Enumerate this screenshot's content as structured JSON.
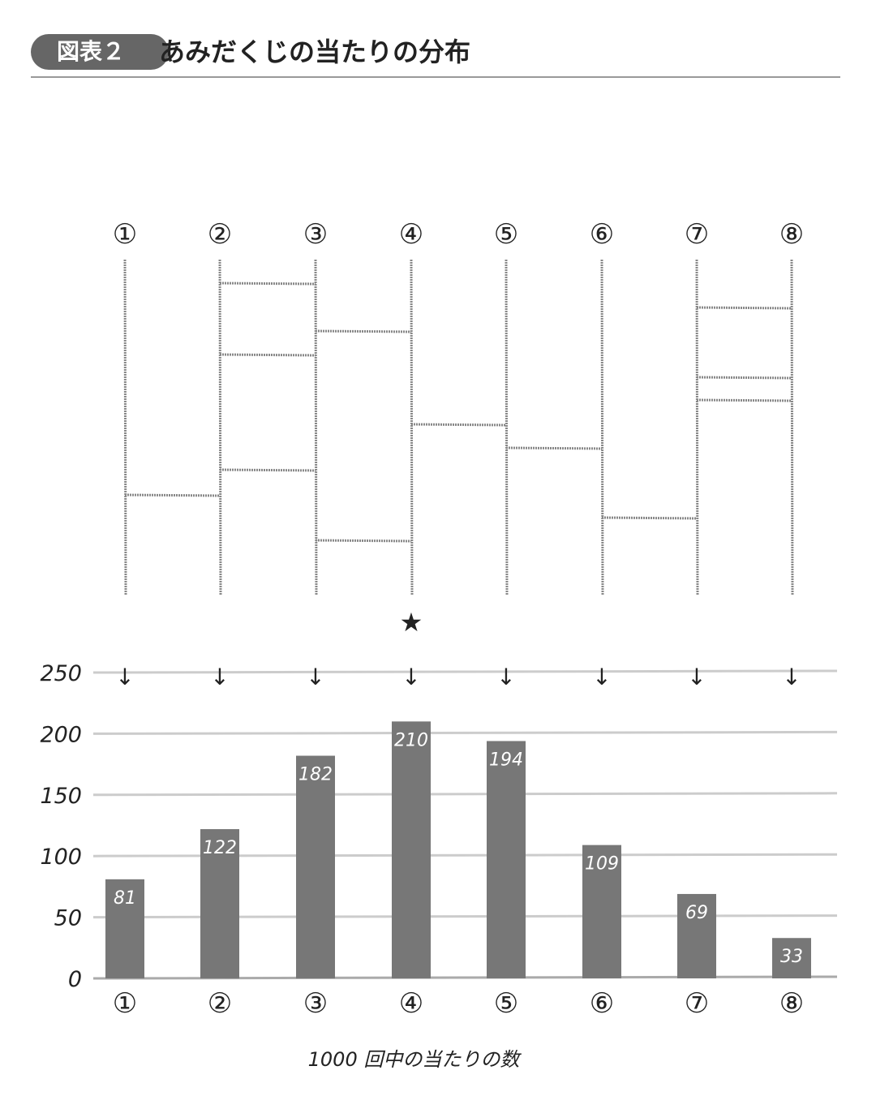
{
  "header": {
    "badge": "図表２",
    "title": "あみだくじの当たりの分布"
  },
  "amida": {
    "labels": [
      "①",
      "②",
      "③",
      "④",
      "⑤",
      "⑥",
      "⑦",
      "⑧"
    ],
    "star_symbol": "★",
    "arrow_symbol": "↓",
    "star_column": 4
  },
  "chart_data": {
    "type": "bar",
    "categories": [
      "①",
      "②",
      "③",
      "④",
      "⑤",
      "⑥",
      "⑦",
      "⑧"
    ],
    "values": [
      81,
      122,
      182,
      210,
      194,
      109,
      69,
      33
    ],
    "data_labels": [
      "81",
      "122",
      "182",
      "210",
      "194",
      "109",
      "69",
      "33"
    ],
    "yticks": [
      "0",
      "50",
      "100",
      "150",
      "200",
      "250"
    ],
    "ylim": [
      0,
      250
    ],
    "xlabel": "1000 回中の当たりの数",
    "grid": true,
    "bar_color": "#777777",
    "grid_color": "#cccccc"
  }
}
